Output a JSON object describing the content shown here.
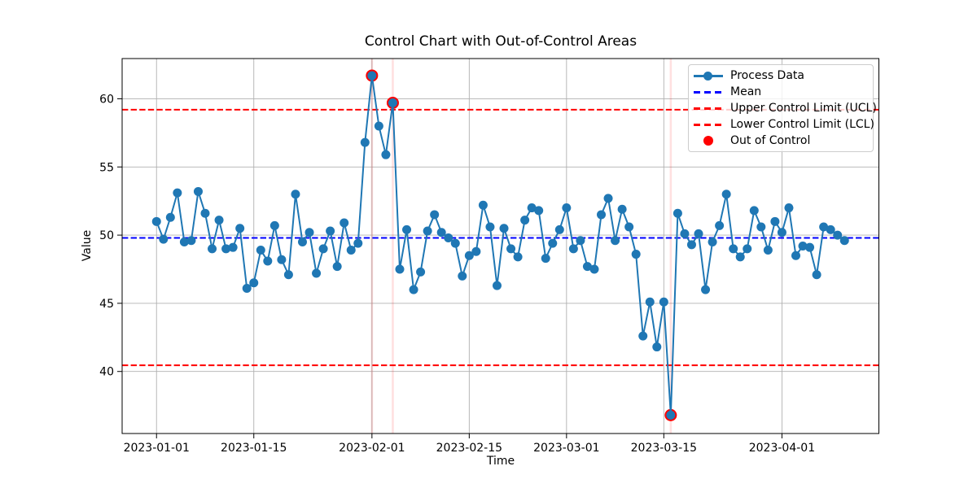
{
  "chart_data": {
    "type": "line",
    "title": "Control Chart with Out-of-Control Areas",
    "xlabel": "Time",
    "ylabel": "Value",
    "x_unit": "days since 2023-01-01",
    "x_tick_days": [
      0,
      14,
      31,
      45,
      59,
      73,
      90
    ],
    "x_tick_labels": [
      "2023-01-01",
      "2023-01-15",
      "2023-02-01",
      "2023-02-15",
      "2023-03-01",
      "2023-03-15",
      "2023-04-01"
    ],
    "y_ticks": [
      40,
      45,
      50,
      55,
      60
    ],
    "ylim": [
      35.45,
      62.95
    ],
    "xlim_days": [
      -4.95,
      103.95
    ],
    "grid": true,
    "legend_position": "upper right",
    "mean": 49.8,
    "ucl": 59.2,
    "lcl": 40.45,
    "series": [
      {
        "name": "Process Data",
        "values": [
          51.0,
          49.7,
          51.3,
          53.1,
          49.5,
          49.6,
          53.2,
          51.6,
          49.0,
          51.1,
          49.0,
          49.1,
          50.5,
          46.1,
          46.5,
          48.9,
          48.1,
          50.7,
          48.2,
          47.1,
          53.0,
          49.5,
          50.2,
          47.2,
          49.0,
          50.3,
          47.7,
          50.9,
          48.9,
          49.4,
          56.8,
          61.7,
          58.0,
          55.9,
          59.7,
          47.5,
          50.4,
          46.0,
          47.3,
          50.3,
          51.5,
          50.2,
          49.8,
          49.4,
          47.0,
          48.5,
          48.8,
          52.2,
          50.6,
          46.3,
          50.5,
          49.0,
          48.4,
          51.1,
          52.0,
          51.8,
          48.3,
          49.4,
          50.4,
          52.0,
          49.0,
          49.6,
          47.7,
          47.5,
          51.5,
          52.7,
          49.6,
          51.9,
          50.6,
          48.6,
          42.6,
          45.1,
          41.8,
          45.1,
          36.8,
          51.6,
          50.1,
          49.3,
          50.1,
          46.0,
          49.5,
          50.7,
          53.0,
          49.0,
          48.4,
          49.0,
          51.8,
          50.6,
          48.9,
          51.0,
          50.2,
          52.0,
          48.5,
          49.2,
          49.1,
          47.1,
          50.6,
          50.4,
          50.0,
          49.6
        ]
      }
    ],
    "out_of_control": [
      {
        "day": 31,
        "value": 61.7
      },
      {
        "day": 34,
        "value": 59.7
      },
      {
        "day": 74,
        "value": 36.8
      }
    ],
    "colors": {
      "process": "#1f77b4",
      "mean": "#0000ff",
      "limit": "#ff0000",
      "out_of_control": "#ff0000",
      "grid": "#b0b0b0",
      "spine": "#000000"
    }
  },
  "legend": {
    "items": [
      {
        "label": "Process Data"
      },
      {
        "label": "Mean"
      },
      {
        "label": "Upper Control Limit (UCL)"
      },
      {
        "label": "Lower Control Limit (LCL)"
      },
      {
        "label": "Out of Control"
      }
    ]
  }
}
